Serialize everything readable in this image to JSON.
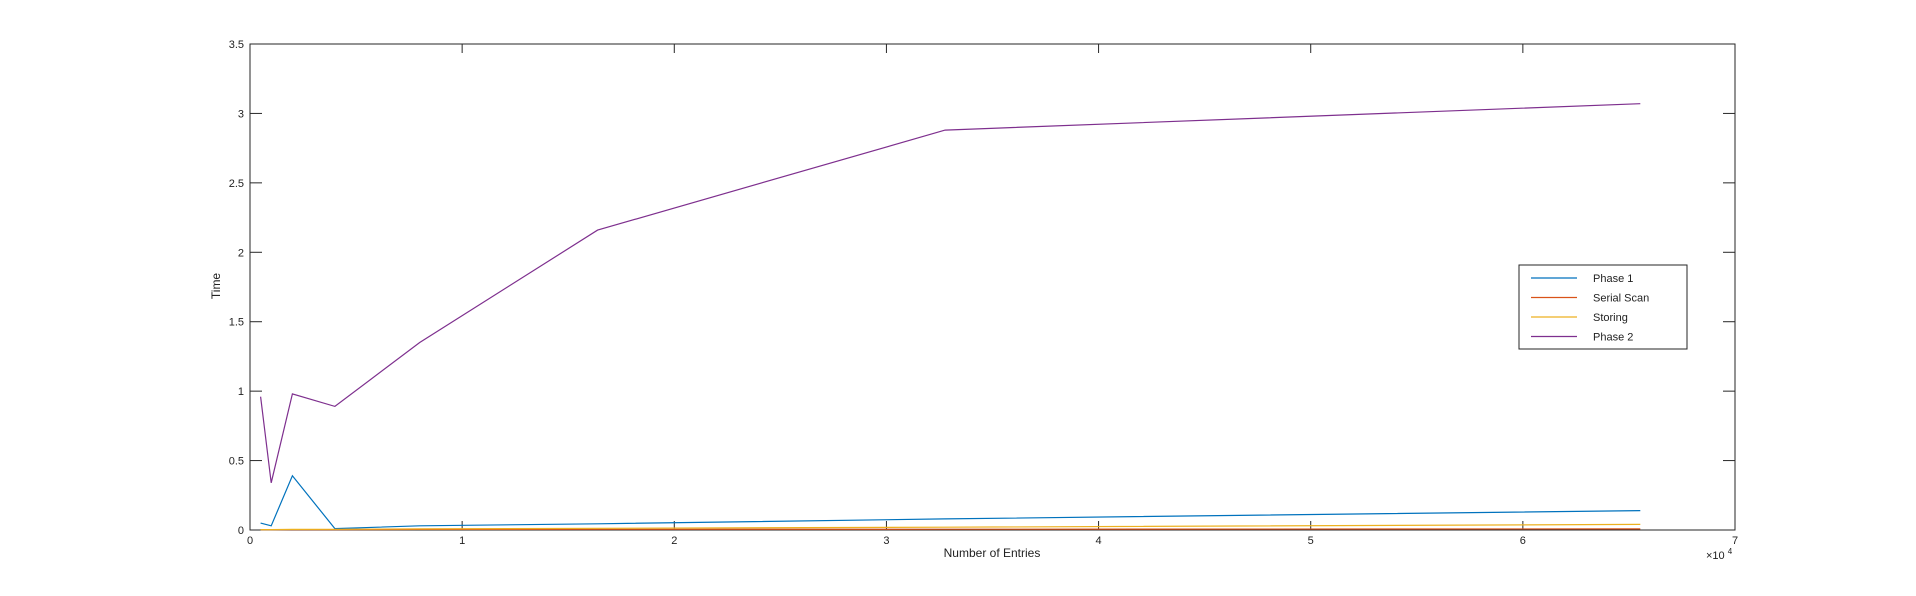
{
  "chart_data": {
    "type": "line",
    "title": "",
    "xlabel": "Number of Entries",
    "ylabel": "Time",
    "x_exponent_label": "×10",
    "x_exponent_power": "4",
    "xlim": [
      0,
      70000
    ],
    "ylim": [
      0,
      3.5
    ],
    "x_ticks": [
      0,
      10000,
      20000,
      30000,
      40000,
      50000,
      60000,
      70000
    ],
    "x_tick_labels": [
      "0",
      "1",
      "2",
      "3",
      "4",
      "5",
      "6",
      "7"
    ],
    "y_ticks": [
      0,
      0.5,
      1,
      1.5,
      2,
      2.5,
      3,
      3.5
    ],
    "y_tick_labels": [
      "0",
      "0.5",
      "1",
      "1.5",
      "2",
      "2.5",
      "3",
      "3.5"
    ],
    "grid": false,
    "legend_position": "right",
    "x": [
      500,
      1000,
      2000,
      4000,
      8000,
      16384,
      32768,
      65536
    ],
    "series": [
      {
        "name": "Phase 1",
        "color": "#0072BD",
        "values": [
          0.05,
          0.03,
          0.39,
          0.01,
          0.03,
          0.045,
          0.08,
          0.14
        ]
      },
      {
        "name": "Serial Scan",
        "color": "#D95319",
        "values": [
          0.002,
          0.002,
          0.003,
          0.003,
          0.004,
          0.005,
          0.006,
          0.008
        ]
      },
      {
        "name": "Storing",
        "color": "#EDB120",
        "values": [
          0.003,
          0.003,
          0.004,
          0.005,
          0.008,
          0.012,
          0.02,
          0.04
        ]
      },
      {
        "name": "Phase 2",
        "color": "#7E2F8E",
        "values": [
          0.96,
          0.34,
          0.98,
          0.89,
          1.35,
          2.16,
          2.88,
          3.07
        ]
      }
    ]
  }
}
